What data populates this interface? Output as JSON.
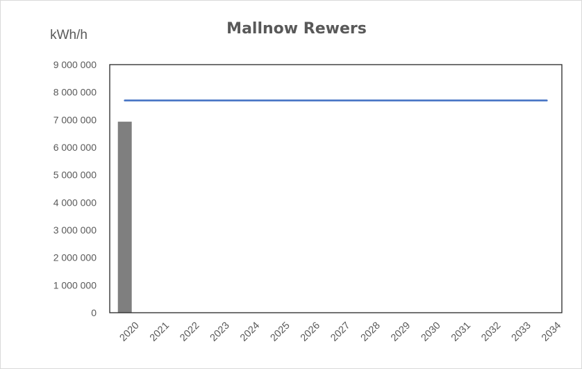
{
  "chart_data": {
    "type": "bar",
    "title": "Mallnow Rewers",
    "ylabel": "kWh/h",
    "xlabel": "",
    "categories": [
      "2020",
      "2021",
      "2022",
      "2023",
      "2024",
      "2025",
      "2026",
      "2027",
      "2028",
      "2029",
      "2030",
      "2031",
      "2032",
      "2033",
      "2034"
    ],
    "series": [
      {
        "type": "bar",
        "color": "#7f7f7f",
        "values": [
          6930000,
          null,
          null,
          null,
          null,
          null,
          null,
          null,
          null,
          null,
          null,
          null,
          null,
          null,
          null
        ]
      },
      {
        "type": "line",
        "color": "#4472c4",
        "values": [
          7700000,
          7700000,
          7700000,
          7700000,
          7700000,
          7700000,
          7700000,
          7700000,
          7700000,
          7700000,
          7700000,
          7700000,
          7700000,
          7700000,
          7700000
        ]
      }
    ],
    "ylim": [
      0,
      9000000
    ],
    "yticks": [
      0,
      1000000,
      2000000,
      3000000,
      4000000,
      5000000,
      6000000,
      7000000,
      8000000,
      9000000
    ],
    "ytick_labels": [
      "0",
      "1 000 000",
      "2 000 000",
      "3 000 000",
      "4 000 000",
      "5 000 000",
      "6 000 000",
      "7 000 000",
      "8 000 000",
      "9 000 000"
    ],
    "grid": false,
    "legend": "none"
  }
}
